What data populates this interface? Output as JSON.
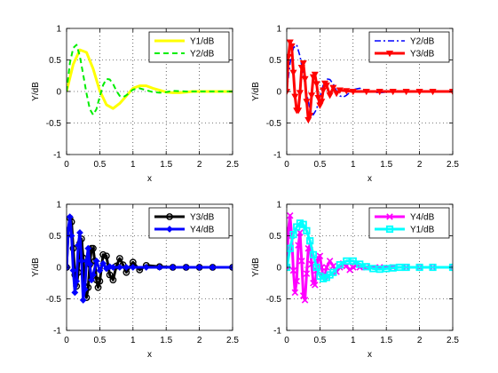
{
  "chart_data": [
    {
      "type": "line",
      "xlabel": "x",
      "ylabel": "Y/dB",
      "xlim": [
        0,
        2.5
      ],
      "ylim": [
        -1,
        1
      ],
      "xticks": [
        0,
        0.5,
        1,
        1.5,
        2,
        2.5
      ],
      "xtick_labels": [
        "0",
        "0.5",
        "1",
        "1.5",
        "2",
        "2.5"
      ],
      "yticks": [
        -1,
        -0.5,
        0,
        0.5,
        1
      ],
      "ytick_labels": [
        "-1",
        "-0.5",
        "0",
        "0.5",
        "1"
      ],
      "grid": true,
      "legend_position": "top-right",
      "series": [
        {
          "name": "Y1/dB",
          "color": "#ffff00",
          "style": "solid",
          "marker": "none",
          "x": [
            0,
            0.1,
            0.2,
            0.3,
            0.4,
            0.5,
            0.6,
            0.7,
            0.8,
            0.9,
            1.0,
            1.1,
            1.2,
            1.3,
            1.4,
            1.5,
            1.6,
            1.7,
            1.8,
            1.9,
            2.0,
            2.1,
            2.2,
            2.3,
            2.4,
            2.5
          ],
          "y": [
            0,
            0.43,
            0.66,
            0.62,
            0.36,
            0.01,
            -0.21,
            -0.27,
            -0.19,
            -0.07,
            0.05,
            0.09,
            0.09,
            0.05,
            0.02,
            -0.01,
            -0.02,
            -0.02,
            -0.01,
            0.0,
            0.0,
            0.0,
            0.0,
            0.0,
            0.0,
            0.0
          ]
        },
        {
          "name": "Y2/dB",
          "color": "#00ee00",
          "style": "dashed",
          "marker": "none",
          "x": [
            0,
            0.05,
            0.1,
            0.15,
            0.2,
            0.25,
            0.3,
            0.35,
            0.4,
            0.45,
            0.5,
            0.55,
            0.6,
            0.65,
            0.7,
            0.75,
            0.8,
            0.85,
            0.9,
            1.0,
            1.1,
            1.2,
            1.3,
            1.4,
            1.5,
            1.6,
            1.8,
            2.0,
            2.2,
            2.5
          ],
          "y": [
            0,
            0.45,
            0.69,
            0.74,
            0.56,
            0.27,
            -0.03,
            -0.28,
            -0.37,
            -0.28,
            -0.08,
            0.1,
            0.2,
            0.19,
            0.12,
            0.01,
            -0.07,
            -0.09,
            -0.06,
            0.03,
            0.05,
            0.02,
            -0.01,
            -0.02,
            -0.01,
            0.01,
            0.0,
            0.0,
            0.0,
            0.0
          ]
        }
      ]
    },
    {
      "type": "line",
      "xlabel": "x",
      "ylabel": "Y/dB",
      "xlim": [
        0,
        2.5
      ],
      "ylim": [
        -1,
        1
      ],
      "xticks": [
        0,
        0.5,
        1,
        1.5,
        2,
        2.5
      ],
      "xtick_labels": [
        "0",
        "0.5",
        "1",
        "1.5",
        "2",
        "2.5"
      ],
      "yticks": [
        -1,
        -0.5,
        0,
        0.5,
        1
      ],
      "ytick_labels": [
        "-1",
        "-0.5",
        "0",
        "0.5",
        "1"
      ],
      "grid": true,
      "legend_position": "top-right",
      "series": [
        {
          "name": "Y2/dB",
          "color": "#0000ff",
          "style": "dashdot",
          "marker": "none",
          "x": [
            0,
            0.05,
            0.1,
            0.15,
            0.2,
            0.25,
            0.3,
            0.35,
            0.4,
            0.45,
            0.5,
            0.55,
            0.6,
            0.65,
            0.7,
            0.75,
            0.8,
            0.85,
            0.9,
            1.0,
            1.1,
            1.2,
            1.3,
            1.4,
            1.5,
            1.6,
            1.8,
            2.0,
            2.2,
            2.5
          ],
          "y": [
            0,
            0.45,
            0.69,
            0.74,
            0.56,
            0.27,
            -0.03,
            -0.28,
            -0.37,
            -0.28,
            -0.08,
            0.1,
            0.2,
            0.19,
            0.12,
            0.01,
            -0.07,
            -0.09,
            -0.06,
            0.03,
            0.05,
            0.02,
            -0.01,
            -0.02,
            -0.01,
            0.01,
            0.0,
            0.0,
            0.0,
            0.0
          ]
        },
        {
          "name": "Y3/dB",
          "color": "#ff0000",
          "style": "solid",
          "marker": "triangle-down",
          "x": [
            0,
            0.025,
            0.05,
            0.075,
            0.1,
            0.125,
            0.15,
            0.175,
            0.2,
            0.225,
            0.25,
            0.275,
            0.3,
            0.325,
            0.35,
            0.375,
            0.4,
            0.425,
            0.45,
            0.475,
            0.5,
            0.525,
            0.55,
            0.575,
            0.6,
            0.65,
            0.7,
            0.75,
            0.8,
            0.9,
            1.0,
            1.2,
            1.4,
            1.6,
            1.8,
            2.0,
            2.2,
            2.5
          ],
          "y": [
            0,
            0.55,
            0.78,
            0.72,
            0.3,
            -0.08,
            -0.3,
            -0.3,
            -0.02,
            0.38,
            0.45,
            0.2,
            -0.16,
            -0.45,
            -0.38,
            -0.06,
            0.23,
            0.27,
            0.12,
            -0.1,
            -0.22,
            -0.16,
            0.02,
            0.13,
            0.1,
            -0.06,
            0.06,
            -0.03,
            0.02,
            0.01,
            0.0,
            0.0,
            0.0,
            0.0,
            0.0,
            0.0,
            0.0,
            0.0
          ]
        }
      ]
    },
    {
      "type": "line",
      "xlabel": "x",
      "ylabel": "Y/dB",
      "xlim": [
        0,
        2.5
      ],
      "ylim": [
        -1,
        1
      ],
      "xticks": [
        0,
        0.5,
        1,
        1.5,
        2,
        2.5
      ],
      "xtick_labels": [
        "0",
        "0.5",
        "1",
        "1.5",
        "2",
        "2.5"
      ],
      "yticks": [
        -1,
        -0.5,
        0,
        0.5,
        1
      ],
      "ytick_labels": [
        "-1",
        "-0.5",
        "0",
        "0.5",
        "1"
      ],
      "grid": true,
      "legend_position": "top-right",
      "series": [
        {
          "name": "Y3/dB",
          "color": "#000000",
          "style": "solid",
          "marker": "circle",
          "x": [
            0,
            0.025,
            0.05,
            0.075,
            0.1,
            0.125,
            0.15,
            0.175,
            0.2,
            0.225,
            0.25,
            0.275,
            0.3,
            0.325,
            0.35,
            0.375,
            0.4,
            0.425,
            0.45,
            0.475,
            0.5,
            0.55,
            0.6,
            0.65,
            0.7,
            0.75,
            0.8,
            0.85,
            0.9,
            1.0,
            1.1,
            1.2,
            1.4,
            1.6,
            1.8,
            2.0,
            2.2,
            2.5
          ],
          "y": [
            0,
            0.55,
            0.78,
            0.72,
            0.3,
            -0.12,
            -0.3,
            -0.08,
            0.38,
            0.45,
            0.15,
            -0.3,
            -0.48,
            -0.32,
            0.05,
            0.3,
            0.3,
            0.1,
            -0.2,
            -0.32,
            -0.22,
            0.2,
            0.18,
            -0.12,
            -0.2,
            0.02,
            0.14,
            0.04,
            -0.08,
            0.08,
            -0.04,
            0.03,
            0.01,
            0.0,
            0.0,
            0.0,
            0.0,
            0.0
          ]
        },
        {
          "name": "Y4/dB",
          "color": "#0000ff",
          "style": "solid",
          "marker": "diamond",
          "x": [
            0,
            0.025,
            0.05,
            0.075,
            0.1,
            0.125,
            0.15,
            0.175,
            0.2,
            0.225,
            0.25,
            0.275,
            0.3,
            0.325,
            0.35,
            0.375,
            0.4,
            0.45,
            0.5,
            0.55,
            0.6,
            0.65,
            0.7,
            0.8,
            0.9,
            1.0,
            1.2,
            1.4,
            1.6,
            1.8,
            2.0,
            2.2,
            2.5
          ],
          "y": [
            0,
            0.6,
            0.8,
            0.5,
            -0.05,
            -0.4,
            -0.22,
            0.35,
            0.55,
            0.1,
            -0.52,
            -0.35,
            0.1,
            0.3,
            0.05,
            -0.2,
            -0.12,
            0.1,
            -0.05,
            0.06,
            -0.02,
            0.01,
            0.0,
            0.0,
            0.0,
            0.0,
            0.0,
            0.0,
            0.0,
            0.0,
            0.0,
            0.0,
            0.0
          ]
        }
      ]
    },
    {
      "type": "line",
      "xlabel": "x",
      "ylabel": "Y/dB",
      "xlim": [
        0,
        2.5
      ],
      "ylim": [
        -1,
        1
      ],
      "xticks": [
        0,
        0.5,
        1,
        1.5,
        2,
        2.5
      ],
      "xtick_labels": [
        "0",
        "0.5",
        "1",
        "1.5",
        "2",
        "2.5"
      ],
      "yticks": [
        -1,
        -0.5,
        0,
        0.5,
        1
      ],
      "ytick_labels": [
        "-1",
        "-0.5",
        "0",
        "0.5",
        "1"
      ],
      "grid": true,
      "legend_position": "top-right",
      "series": [
        {
          "name": "Y4/dB",
          "color": "#ff00ff",
          "style": "solid",
          "marker": "x",
          "x": [
            0,
            0.025,
            0.05,
            0.075,
            0.1,
            0.125,
            0.15,
            0.175,
            0.2,
            0.225,
            0.25,
            0.275,
            0.3,
            0.325,
            0.35,
            0.375,
            0.4,
            0.425,
            0.45,
            0.475,
            0.5,
            0.525,
            0.55,
            0.575,
            0.6,
            0.65,
            0.7,
            0.75,
            0.8,
            0.85,
            0.9,
            0.95,
            1.0,
            1.05,
            1.1,
            1.2,
            1.4,
            1.6,
            1.8,
            2.0,
            2.2,
            2.5
          ],
          "y": [
            0,
            0.6,
            0.82,
            0.5,
            -0.05,
            -0.4,
            -0.22,
            0.35,
            0.55,
            0.1,
            -0.45,
            -0.52,
            -0.1,
            0.3,
            0.35,
            0.05,
            -0.25,
            -0.28,
            -0.05,
            0.15,
            0.18,
            0.0,
            -0.15,
            -0.14,
            0.0,
            0.1,
            0.02,
            -0.07,
            0.0,
            0.06,
            0.02,
            -0.04,
            0.0,
            0.03,
            0.0,
            0.0,
            0.0,
            0.0,
            0.0,
            0.0,
            0.0,
            0.0
          ]
        },
        {
          "name": "Y1/dB",
          "color": "#00ffff",
          "style": "solid",
          "marker": "square",
          "x": [
            0,
            0.05,
            0.1,
            0.15,
            0.2,
            0.25,
            0.3,
            0.35,
            0.4,
            0.45,
            0.5,
            0.55,
            0.6,
            0.65,
            0.7,
            0.8,
            0.9,
            1.0,
            1.1,
            1.2,
            1.3,
            1.4,
            1.5,
            1.6,
            1.7,
            1.8,
            2.0,
            2.2,
            2.5
          ],
          "y": [
            0,
            0.3,
            0.52,
            0.64,
            0.7,
            0.68,
            0.58,
            0.42,
            0.2,
            0.0,
            -0.14,
            -0.18,
            -0.16,
            -0.12,
            -0.08,
            0.04,
            0.1,
            0.1,
            0.05,
            0.01,
            -0.02,
            -0.03,
            -0.02,
            -0.01,
            0.0,
            0.0,
            0.0,
            0.0,
            0.0
          ]
        }
      ]
    }
  ]
}
